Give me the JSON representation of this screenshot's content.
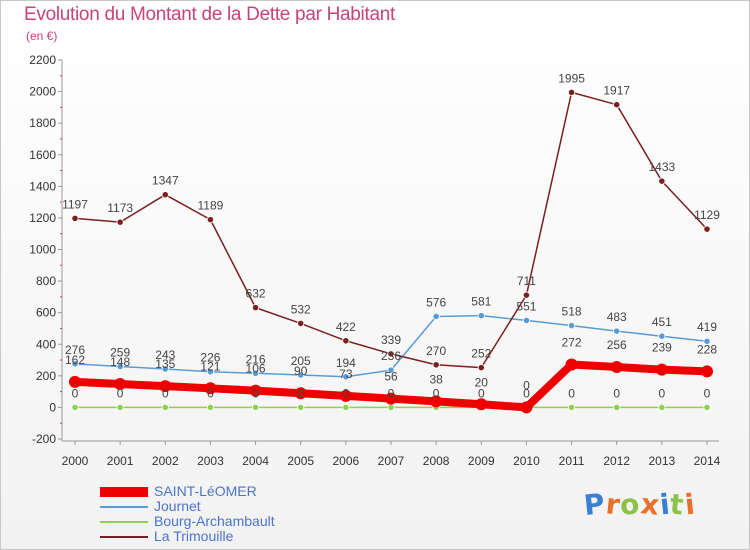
{
  "title": "Evolution du Montant de la Dette par Habitant",
  "subtitle": "(en €)",
  "logo_text": "Proxiti",
  "chart_data": {
    "type": "line",
    "x": [
      2000,
      2001,
      2002,
      2003,
      2004,
      2005,
      2006,
      2007,
      2008,
      2009,
      2010,
      2011,
      2012,
      2013,
      2014
    ],
    "ylim": [
      -200,
      2200
    ],
    "yticks": [
      -200,
      0,
      200,
      400,
      600,
      800,
      1000,
      1200,
      1400,
      1600,
      1800,
      2000,
      2200
    ],
    "grid": false,
    "legend_position": "bottom-left",
    "series": [
      {
        "name": "SAINT-LéOMER",
        "color": "#ee0000",
        "values": [
          162,
          148,
          135,
          121,
          106,
          90,
          73,
          56,
          38,
          20,
          0,
          272,
          256,
          239,
          228
        ],
        "labels": [
          "162",
          "148",
          "135",
          "121",
          "106",
          "90",
          "73",
          "56",
          "38",
          "20",
          "0",
          "272",
          "256",
          "239",
          "228"
        ]
      },
      {
        "name": "Journet",
        "color": "#5b9bd5",
        "values": [
          276,
          259,
          243,
          226,
          216,
          205,
          194,
          236,
          576,
          581,
          551,
          518,
          483,
          451,
          419
        ],
        "labels": [
          "276",
          "259",
          "243",
          "226",
          "216",
          "205",
          "194",
          "236",
          "576",
          "581",
          "551",
          "518",
          "483",
          "451",
          "419"
        ]
      },
      {
        "name": "Bourg-Archambault",
        "color": "#8fd14f",
        "values": [
          0,
          0,
          0,
          0,
          0,
          0,
          0,
          0,
          0,
          0,
          0,
          0,
          0,
          0,
          0
        ],
        "labels": [
          "0",
          "0",
          "0",
          "0",
          "0",
          "0",
          "0",
          "0",
          "0",
          "0",
          "0",
          "0",
          "0",
          "0",
          "0"
        ]
      },
      {
        "name": "La Trimouille",
        "color": "#7a1f1f",
        "values": [
          1197,
          1173,
          1347,
          1189,
          632,
          532,
          422,
          339,
          270,
          252,
          711,
          1995,
          1917,
          1433,
          1129
        ],
        "labels": [
          "1197",
          "1173",
          "1347",
          "1189",
          "632",
          "532",
          "422",
          "339",
          "270",
          "252",
          "711",
          "1995",
          "1917",
          "1433",
          "1129"
        ]
      }
    ]
  }
}
